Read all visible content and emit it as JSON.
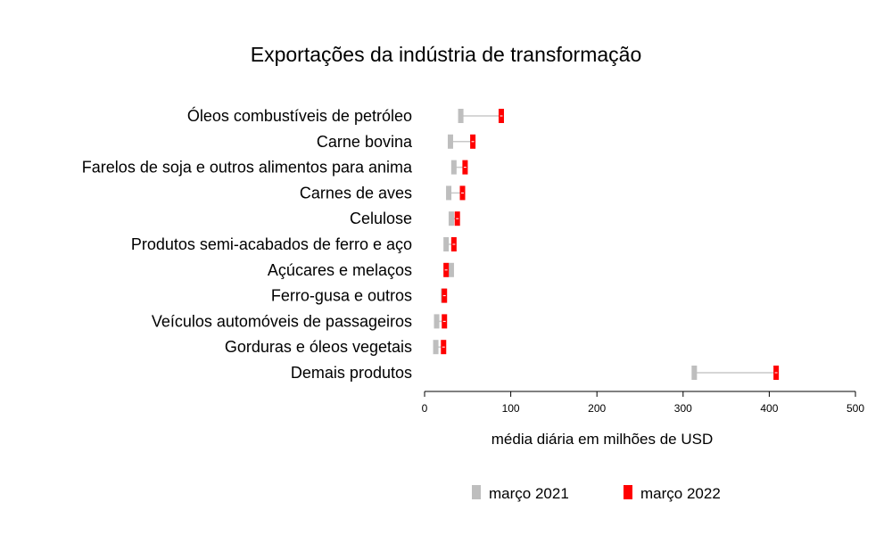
{
  "chart_data": {
    "type": "dumbbell",
    "title": "Exportações da indústria de transformação",
    "xlabel": "média diária em milhões de USD",
    "ylabel": "",
    "xlim": [
      0,
      500
    ],
    "xticks": [
      0,
      100,
      200,
      300,
      400,
      500
    ],
    "categories": [
      "Óleos combustíveis de petróleo",
      "Carne bovina",
      "Farelos de soja e outros alimentos para anima",
      "Carnes de aves",
      "Celulose",
      "Produtos semi-acabados de ferro e aço",
      "Açúcares e melaços",
      "Ferro-gusa e outros",
      "Veículos automóveis de passageiros",
      "Gorduras e óleos vegetais",
      "Demais produtos"
    ],
    "series": [
      {
        "name": "março 2021",
        "color": "#bebebe",
        "values": [
          42,
          30,
          34,
          28,
          31,
          25,
          31,
          22,
          14,
          13,
          313
        ]
      },
      {
        "name": "março 2022",
        "color": "#ff0000",
        "values": [
          89,
          56,
          47,
          44,
          38,
          34,
          25,
          23,
          23,
          22,
          408
        ]
      }
    ],
    "legend_position": "bottom",
    "grid": false
  }
}
